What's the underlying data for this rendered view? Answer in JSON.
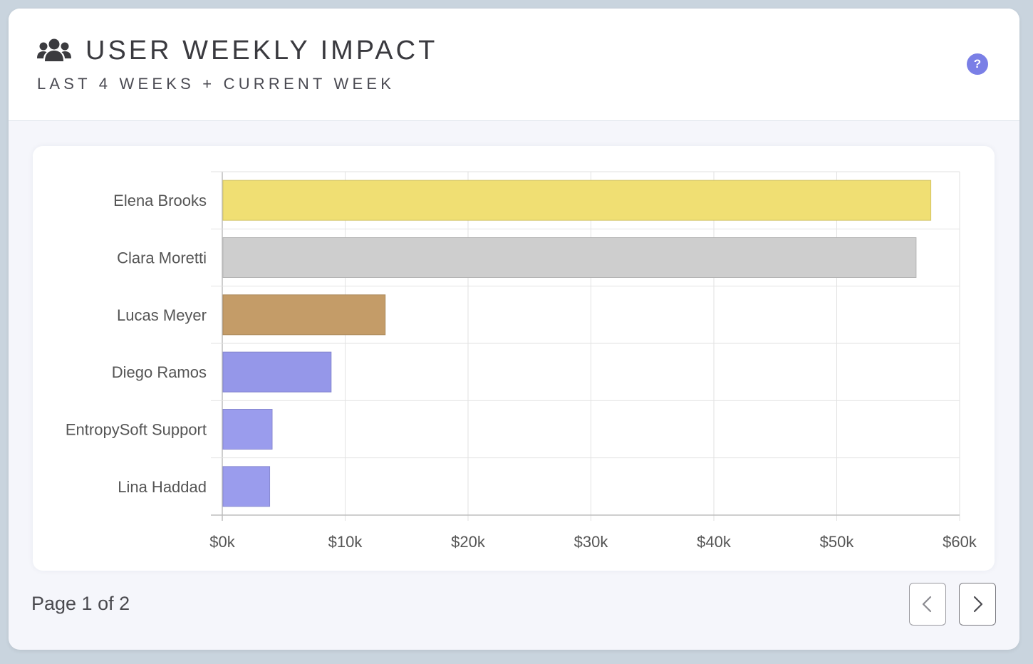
{
  "header": {
    "title": "USER WEEKLY IMPACT",
    "subtitle": "LAST 4 WEEKS + CURRENT WEEK",
    "icon": "users-icon",
    "help_icon": "?"
  },
  "pagination": {
    "label": "Page 1 of 2",
    "prev_icon": "chevron-left-icon",
    "next_icon": "chevron-right-icon"
  },
  "chart_data": {
    "type": "bar",
    "orientation": "horizontal",
    "categories": [
      "Elena Brooks",
      "Clara Moretti",
      "Lucas Meyer",
      "Diego Ramos",
      "EntropySoft Support",
      "Lina Haddad"
    ],
    "values": [
      57600,
      56400,
      13200,
      8800,
      4000,
      3800
    ],
    "colors": [
      "#f0df73",
      "#cecece",
      "#c49c68",
      "#9597e9",
      "#9a9ced",
      "#9a9ced"
    ],
    "xlim": [
      0,
      60000
    ],
    "xticks": [
      0,
      10000,
      20000,
      30000,
      40000,
      50000,
      60000
    ],
    "xtick_labels": [
      "$0k",
      "$10k",
      "$20k",
      "$30k",
      "$40k",
      "$50k",
      "$60k"
    ],
    "grid": true,
    "legend": "none"
  }
}
